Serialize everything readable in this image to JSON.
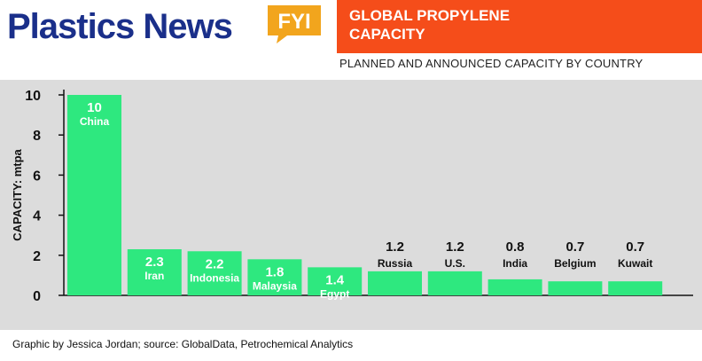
{
  "brand": {
    "name": "Plastics News",
    "badge": "FYI"
  },
  "header": {
    "title": "GLOBAL PROPYLENE CAPACITY",
    "subtitle": "PLANNED AND ANNOUNCED CAPACITY BY COUNTRY"
  },
  "colors": {
    "bar": "#2ee87f",
    "title_bg": "#f54d1a",
    "brand": "#1a2f8a",
    "badge": "#f2a51d",
    "plot_bg": "#dcdcdc"
  },
  "chart_data": {
    "type": "bar",
    "categories": [
      "China",
      "Iran",
      "Indonesia",
      "Malaysia",
      "Egypt",
      "Russia",
      "U.S.",
      "India",
      "Belgium",
      "Kuwait"
    ],
    "values": [
      10,
      2.3,
      2.2,
      1.8,
      1.4,
      1.2,
      1.2,
      0.8,
      0.7,
      0.7
    ],
    "value_labels": [
      "10",
      "2.3",
      "2.2",
      "1.8",
      "1.4",
      "1.2",
      "1.2",
      "0.8",
      "0.7",
      "0.7"
    ],
    "ylabel": "CAPACITY: mtpa",
    "ylim": [
      0,
      10
    ],
    "yticks": [
      0,
      2,
      4,
      6,
      8,
      10
    ],
    "grid": false
  },
  "footer": {
    "credit": "Graphic by Jessica Jordan; source: GlobalData, Petrochemical Analytics"
  }
}
